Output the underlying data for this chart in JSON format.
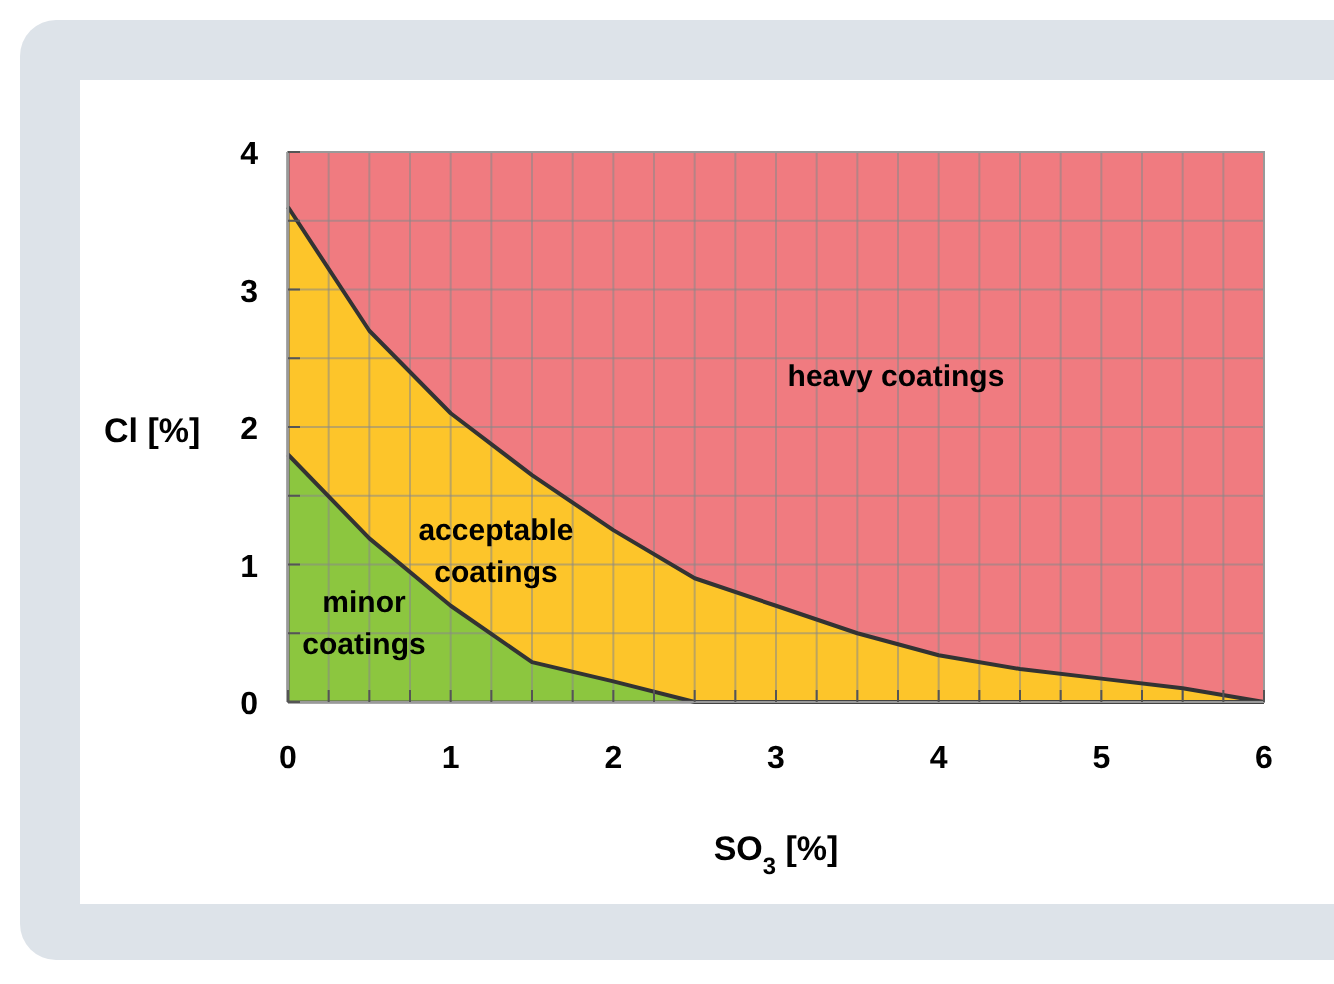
{
  "chart_data": {
    "type": "area",
    "stacked": true,
    "xlabel": "SO$_{3}$ [%]",
    "ylabel": "Cl [%]",
    "x": [
      0,
      0.5,
      1,
      1.5,
      2,
      2.5,
      3,
      3.5,
      4,
      4.5,
      5,
      5.5,
      6
    ],
    "xlim": [
      0,
      6
    ],
    "ylim": [
      0,
      4
    ],
    "xticks": [
      0,
      {
        "value": 0.25,
        "label": null
      },
      {
        "value": 0.5,
        "label": null
      },
      {
        "value": 0.75,
        "label": null
      },
      1,
      {
        "value": 1.25,
        "label": null
      },
      {
        "value": 1.5,
        "label": null
      },
      {
        "value": 1.75,
        "label": null
      },
      2,
      {
        "value": 2.25,
        "label": null
      },
      {
        "value": 2.5,
        "label": null
      },
      {
        "value": 2.75,
        "label": null
      },
      3,
      {
        "value": 3.25,
        "label": null
      },
      {
        "value": 3.5,
        "label": null
      },
      {
        "value": 3.75,
        "label": null
      },
      4,
      {
        "value": 4.25,
        "label": null
      },
      {
        "value": 4.5,
        "label": null
      },
      {
        "value": 4.75,
        "label": null
      },
      5,
      {
        "value": 5.25,
        "label": null
      },
      {
        "value": 5.5,
        "label": null
      },
      {
        "value": 5.75,
        "label": null
      },
      6
    ],
    "yticks": [
      0,
      {
        "value": 0.5,
        "label": null
      },
      1,
      {
        "value": 1.5,
        "label": null
      },
      2,
      {
        "value": 2.5,
        "label": null
      },
      3,
      {
        "value": 3.5,
        "label": null
      },
      4
    ],
    "grid": true,
    "series": [
      {
        "name": "minor coatings",
        "color": "#8cc63f",
        "values": [
          1.8,
          1.19,
          0.7,
          0.29,
          0.15,
          0,
          0,
          0,
          0,
          0,
          0,
          0,
          0
        ]
      },
      {
        "name": "acceptable coatings",
        "color": "#fdc52a",
        "values": [
          1.8,
          1.51,
          1.4,
          1.36,
          1.1,
          0.9,
          0.7,
          0.5,
          0.34,
          0.24,
          0.17,
          0.1,
          0
        ]
      },
      {
        "name": "heavy coatings",
        "color": "#f07b80",
        "values": [
          0.4,
          1.3,
          1.9,
          2.35,
          2.75,
          3.1,
          3.3,
          3.5,
          3.66,
          3.76,
          3.83,
          3.9,
          4
        ]
      }
    ]
  }
}
